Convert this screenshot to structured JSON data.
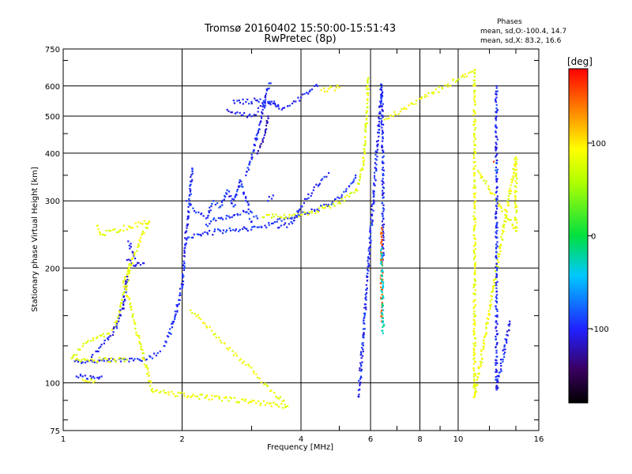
{
  "chart_data": {
    "type": "scatter",
    "title": "Tromsø 20160402 15:50:00-15:51:43",
    "subtitle": "RwPretec (8p)",
    "xlabel": "Frequency [MHz]",
    "ylabel": "Stationary phase Virtual Height [km]",
    "x_scale": "log",
    "y_scale": "log",
    "xlim": [
      1,
      16
    ],
    "ylim": [
      75,
      750
    ],
    "x_ticks": [
      "1",
      "2",
      "4",
      "6",
      "8",
      "10",
      "16"
    ],
    "x_tick_values": [
      1,
      2,
      4,
      6,
      8,
      10,
      16
    ],
    "y_ticks": [
      "75",
      "100",
      "200",
      "300",
      "400",
      "500",
      "600",
      "750"
    ],
    "y_tick_values": [
      75,
      100,
      200,
      300,
      400,
      500,
      600,
      750
    ],
    "grid": true,
    "phases_box": {
      "heading": "Phases",
      "line1": "mean, sd,O:-100.4, 14.7",
      "line2": "mean, sd,X:  83.2, 16.6"
    },
    "colorbar": {
      "label": "[deg]",
      "range": [
        -180,
        180
      ],
      "ticks": [
        "100",
        "0",
        "-100"
      ],
      "tick_values": [
        100,
        0,
        -100
      ]
    },
    "traces": [
      {
        "phase": -100,
        "points": [
          [
            1.08,
            104
          ],
          [
            1.12,
            104
          ],
          [
            1.18,
            103
          ],
          [
            1.25,
            104
          ]
        ]
      },
      {
        "phase": 85,
        "points": [
          [
            1.12,
            102
          ],
          [
            1.15,
            101
          ],
          [
            1.18,
            102
          ],
          [
            1.2,
            101
          ]
        ]
      },
      {
        "phase": -100,
        "points": [
          [
            1.07,
            114
          ],
          [
            1.15,
            114
          ],
          [
            1.3,
            114
          ],
          [
            1.45,
            115
          ],
          [
            1.6,
            116
          ],
          [
            1.72,
            118
          ],
          [
            1.76,
            121
          ]
        ]
      },
      {
        "phase": 80,
        "points": [
          [
            1.05,
            116
          ],
          [
            1.15,
            115
          ],
          [
            1.25,
            115
          ],
          [
            1.35,
            115
          ],
          [
            1.45,
            115
          ]
        ]
      },
      {
        "phase": 80,
        "points": [
          [
            1.06,
            118
          ],
          [
            1.1,
            122
          ],
          [
            1.15,
            128
          ],
          [
            1.22,
            132
          ],
          [
            1.3,
            135
          ],
          [
            1.35,
            140
          ],
          [
            1.38,
            150
          ],
          [
            1.41,
            165
          ],
          [
            1.44,
            178
          ],
          [
            1.46,
            190
          ],
          [
            1.47,
            205
          ]
        ]
      },
      {
        "phase": -105,
        "points": [
          [
            1.18,
            117
          ],
          [
            1.22,
            121
          ],
          [
            1.25,
            126
          ],
          [
            1.3,
            130
          ],
          [
            1.34,
            136
          ],
          [
            1.38,
            145
          ],
          [
            1.42,
            160
          ],
          [
            1.44,
            178
          ],
          [
            1.45,
            190
          ]
        ]
      },
      {
        "phase": -110,
        "points": [
          [
            1.45,
            210
          ],
          [
            1.49,
            206
          ],
          [
            1.53,
            204
          ],
          [
            1.57,
            204
          ],
          [
            1.6,
            206
          ]
        ]
      },
      {
        "phase": -100,
        "points": [
          [
            1.46,
            235
          ],
          [
            1.5,
            220
          ],
          [
            1.52,
            212
          ]
        ]
      },
      {
        "phase": -100,
        "points": [
          [
            1.8,
            125
          ],
          [
            1.86,
            135
          ],
          [
            1.92,
            150
          ],
          [
            1.96,
            165
          ],
          [
            2.0,
            180
          ],
          [
            2.02,
            200
          ],
          [
            2.03,
            220
          ],
          [
            2.05,
            250
          ],
          [
            2.08,
            280
          ],
          [
            2.1,
            320
          ],
          [
            2.12,
            365
          ]
        ]
      },
      {
        "phase": -95,
        "points": [
          [
            2.05,
            238
          ],
          [
            2.2,
            245
          ],
          [
            2.5,
            250
          ],
          [
            2.8,
            252
          ],
          [
            3.1,
            256
          ],
          [
            3.4,
            262
          ],
          [
            3.7,
            270
          ],
          [
            4.0,
            276
          ],
          [
            4.4,
            285
          ],
          [
            4.8,
            297
          ],
          [
            5.0,
            305
          ],
          [
            5.2,
            318
          ],
          [
            5.4,
            335
          ],
          [
            5.5,
            350
          ]
        ]
      },
      {
        "phase": 80,
        "points": [
          [
            3.2,
            272
          ],
          [
            3.5,
            273
          ],
          [
            3.8,
            275
          ],
          [
            4.2,
            280
          ],
          [
            4.6,
            288
          ],
          [
            5.0,
            298
          ],
          [
            5.3,
            308
          ],
          [
            5.5,
            320
          ],
          [
            5.65,
            345
          ],
          [
            5.75,
            380
          ],
          [
            5.82,
            430
          ],
          [
            5.86,
            490
          ],
          [
            5.88,
            540
          ],
          [
            5.9,
            600
          ],
          [
            5.92,
            630
          ]
        ]
      },
      {
        "phase": -100,
        "points": [
          [
            3.5,
            255
          ],
          [
            3.8,
            262
          ],
          [
            4.0,
            290
          ],
          [
            4.3,
            320
          ],
          [
            4.5,
            340
          ],
          [
            4.7,
            355
          ]
        ]
      },
      {
        "phase": -95,
        "points": [
          [
            2.05,
            300
          ],
          [
            2.2,
            280
          ],
          [
            2.3,
            270
          ],
          [
            2.4,
            300
          ],
          [
            2.5,
            290
          ],
          [
            2.6,
            320
          ],
          [
            2.7,
            290
          ],
          [
            2.8,
            340
          ],
          [
            2.9,
            300
          ],
          [
            3.0,
            280
          ],
          [
            3.1,
            270
          ]
        ]
      },
      {
        "phase": -95,
        "points": [
          [
            2.3,
            260
          ],
          [
            2.5,
            270
          ],
          [
            2.7,
            275
          ],
          [
            2.9,
            280
          ],
          [
            3.0,
            265
          ]
        ]
      },
      {
        "phase": -100,
        "points": [
          [
            2.9,
            350
          ],
          [
            3.0,
            390
          ],
          [
            3.05,
            420
          ],
          [
            3.1,
            450
          ],
          [
            3.15,
            480
          ],
          [
            3.2,
            520
          ],
          [
            3.25,
            560
          ],
          [
            3.3,
            590
          ],
          [
            3.35,
            610
          ]
        ]
      },
      {
        "phase": -120,
        "points": [
          [
            3.1,
            400
          ],
          [
            3.2,
            430
          ],
          [
            3.25,
            460
          ],
          [
            3.3,
            500
          ]
        ]
      },
      {
        "phase": -105,
        "points": [
          [
            2.6,
            520
          ],
          [
            2.8,
            510
          ],
          [
            3.0,
            500
          ],
          [
            3.2,
            530
          ],
          [
            3.4,
            540
          ],
          [
            3.6,
            525
          ],
          [
            3.8,
            540
          ],
          [
            4.0,
            560
          ],
          [
            4.2,
            580
          ],
          [
            4.4,
            600
          ]
        ]
      },
      {
        "phase": -100,
        "points": [
          [
            2.7,
            550
          ],
          [
            2.9,
            545
          ],
          [
            3.1,
            550
          ],
          [
            3.3,
            545
          ],
          [
            3.5,
            535
          ]
        ]
      },
      {
        "phase": 90,
        "points": [
          [
            4.5,
            585
          ],
          [
            4.7,
            590
          ],
          [
            5.0,
            595
          ]
        ]
      },
      {
        "phase": -100,
        "points": [
          [
            3.3,
            300
          ],
          [
            3.4,
            310
          ]
        ]
      },
      {
        "phase": 85,
        "points": [
          [
            1.22,
            258
          ],
          [
            1.24,
            245
          ],
          [
            1.65,
            265
          ],
          [
            1.42,
            185
          ],
          [
            1.68,
            95
          ],
          [
            3.7,
            87
          ],
          [
            2.1,
            155
          ]
        ]
      },
      {
        "phase": -100,
        "points": [
          [
            5.6,
            92
          ],
          [
            6.4,
            605
          ],
          [
            6.45,
            350
          ],
          [
            6.45,
            210
          ]
        ]
      },
      {
        "phase": 150,
        "points": [
          [
            6.4,
            255
          ],
          [
            6.4,
            145
          ]
        ]
      },
      {
        "phase": -30,
        "points": [
          [
            6.45,
            135
          ],
          [
            6.4,
            225
          ]
        ]
      },
      {
        "phase": 85,
        "points": [
          [
            6.5,
            490
          ],
          [
            11.0,
            660
          ],
          [
            11.0,
            620
          ],
          [
            11.0,
            560
          ],
          [
            11.0,
            460
          ],
          [
            11.0,
            410
          ],
          [
            11.0,
            280
          ],
          [
            11.0,
            255
          ],
          [
            11.0,
            180
          ],
          [
            11.0,
            92
          ],
          [
            14.0,
            390
          ],
          [
            14.0,
            250
          ],
          [
            11.2,
            360
          ]
        ]
      },
      {
        "phase": -100,
        "points": [
          [
            12.5,
            600
          ],
          [
            12.5,
            560
          ],
          [
            12.5,
            500
          ],
          [
            12.5,
            240
          ],
          [
            12.5,
            220
          ],
          [
            12.5,
            205
          ],
          [
            12.5,
            120
          ],
          [
            12.5,
            96
          ],
          [
            13.5,
            145
          ]
        ]
      },
      {
        "phase": 160,
        "points": [
          [
            12.3,
            380
          ]
        ]
      },
      {
        "phase": -60,
        "points": [
          [
            12.5,
            360
          ]
        ]
      }
    ]
  }
}
